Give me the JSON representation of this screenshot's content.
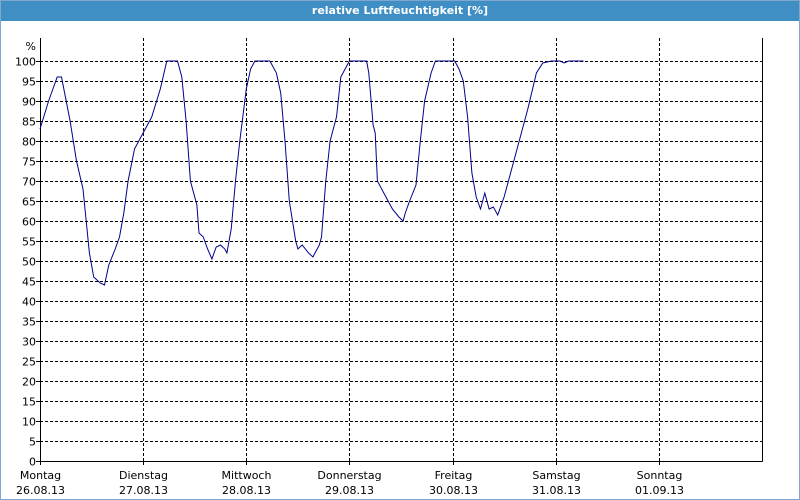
{
  "title": "relative Luftfeuchtigkeit [%]",
  "colors": {
    "title_bar": "#3f8fc4",
    "title_text": "#ffffff",
    "line": "#00008b",
    "grid": "#000000",
    "axis": "#000000"
  },
  "chart_data": {
    "type": "line",
    "title": "relative Luftfeuchtigkeit [%]",
    "ylabel": "%",
    "xlabel": "",
    "ylim": [
      0,
      100
    ],
    "yticks": [
      0,
      5,
      10,
      15,
      20,
      25,
      30,
      35,
      40,
      45,
      50,
      55,
      60,
      65,
      70,
      75,
      80,
      85,
      90,
      95,
      100
    ],
    "xlim": [
      "2013-08-26 00:00",
      "2013-09-02 00:00"
    ],
    "grid": true,
    "legend": "none",
    "x_ticks": [
      {
        "day": "Montag",
        "date": "26.08.13",
        "t": "2013-08-26 00:00"
      },
      {
        "day": "Dienstag",
        "date": "27.08.13",
        "t": "2013-08-27 00:00"
      },
      {
        "day": "Mittwoch",
        "date": "28.08.13",
        "t": "2013-08-28 00:00"
      },
      {
        "day": "Donnerstag",
        "date": "29.08.13",
        "t": "2013-08-29 00:00"
      },
      {
        "day": "Freitag",
        "date": "30.08.13",
        "t": "2013-08-30 00:00"
      },
      {
        "day": "Samstag",
        "date": "31.08.13",
        "t": "2013-08-31 00:00"
      },
      {
        "day": "Sonntag",
        "date": "01.09.13",
        "t": "2013-09-01 00:00"
      }
    ],
    "series": [
      {
        "color": "#00008b",
        "points": [
          [
            "2013-08-26 00:00",
            83
          ],
          [
            "2013-08-26 02:00",
            90
          ],
          [
            "2013-08-26 04:00",
            96
          ],
          [
            "2013-08-26 05:00",
            96
          ],
          [
            "2013-08-26 07:00",
            85
          ],
          [
            "2013-08-26 08:30",
            75
          ],
          [
            "2013-08-26 10:00",
            68
          ],
          [
            "2013-08-26 11:30",
            52
          ],
          [
            "2013-08-26 12:30",
            46
          ],
          [
            "2013-08-26 14:00",
            44.5
          ],
          [
            "2013-08-26 15:00",
            44
          ],
          [
            "2013-08-26 16:00",
            49
          ],
          [
            "2013-08-26 17:30",
            53
          ],
          [
            "2013-08-26 18:30",
            56
          ],
          [
            "2013-08-26 19:30",
            62
          ],
          [
            "2013-08-26 20:30",
            70
          ],
          [
            "2013-08-26 22:00",
            78
          ],
          [
            "2013-08-27 00:00",
            82
          ],
          [
            "2013-08-27 02:00",
            86
          ],
          [
            "2013-08-27 04:00",
            93
          ],
          [
            "2013-08-27 05:30",
            100
          ],
          [
            "2013-08-27 08:00",
            100
          ],
          [
            "2013-08-27 09:00",
            96
          ],
          [
            "2013-08-27 10:00",
            85
          ],
          [
            "2013-08-27 11:00",
            70
          ],
          [
            "2013-08-27 12:30",
            64
          ],
          [
            "2013-08-27 13:00",
            57
          ],
          [
            "2013-08-27 14:00",
            56
          ],
          [
            "2013-08-27 15:00",
            53
          ],
          [
            "2013-08-27 16:00",
            50.5
          ],
          [
            "2013-08-27 17:00",
            53.5
          ],
          [
            "2013-08-27 18:00",
            54
          ],
          [
            "2013-08-27 19:00",
            53
          ],
          [
            "2013-08-27 19:30",
            52
          ],
          [
            "2013-08-27 20:30",
            58
          ],
          [
            "2013-08-27 21:30",
            70
          ],
          [
            "2013-08-27 22:30",
            80
          ],
          [
            "2013-08-28 00:00",
            93
          ],
          [
            "2013-08-28 01:00",
            98
          ],
          [
            "2013-08-28 02:00",
            100
          ],
          [
            "2013-08-28 05:30",
            100
          ],
          [
            "2013-08-28 07:00",
            97
          ],
          [
            "2013-08-28 08:00",
            92
          ],
          [
            "2013-08-28 09:00",
            80
          ],
          [
            "2013-08-28 10:00",
            65
          ],
          [
            "2013-08-28 11:30",
            55
          ],
          [
            "2013-08-28 12:00",
            53
          ],
          [
            "2013-08-28 13:00",
            54
          ],
          [
            "2013-08-28 14:30",
            52
          ],
          [
            "2013-08-28 15:30",
            51
          ],
          [
            "2013-08-28 17:00",
            54
          ],
          [
            "2013-08-28 17:30",
            56
          ],
          [
            "2013-08-28 18:30",
            70
          ],
          [
            "2013-08-28 19:30",
            80
          ],
          [
            "2013-08-28 21:00",
            86
          ],
          [
            "2013-08-28 22:00",
            96
          ],
          [
            "2013-08-29 00:00",
            100
          ],
          [
            "2013-08-29 04:00",
            100
          ],
          [
            "2013-08-29 04:30",
            97
          ],
          [
            "2013-08-29 05:30",
            84
          ],
          [
            "2013-08-29 06:00",
            82
          ],
          [
            "2013-08-29 06:30",
            70
          ],
          [
            "2013-08-29 08:00",
            67
          ],
          [
            "2013-08-29 09:00",
            65
          ],
          [
            "2013-08-29 10:00",
            63
          ],
          [
            "2013-08-29 11:30",
            61
          ],
          [
            "2013-08-29 12:30",
            60
          ],
          [
            "2013-08-29 13:00",
            62
          ],
          [
            "2013-08-29 14:00",
            65
          ],
          [
            "2013-08-29 15:30",
            69
          ],
          [
            "2013-08-29 16:30",
            80
          ],
          [
            "2013-08-29 17:30",
            90
          ],
          [
            "2013-08-29 19:00",
            97
          ],
          [
            "2013-08-29 20:00",
            100
          ],
          [
            "2013-08-30 00:30",
            100
          ],
          [
            "2013-08-30 01:30",
            98
          ],
          [
            "2013-08-30 02:30",
            95
          ],
          [
            "2013-08-30 03:30",
            86
          ],
          [
            "2013-08-30 04:30",
            72
          ],
          [
            "2013-08-30 05:30",
            66
          ],
          [
            "2013-08-30 06:30",
            63
          ],
          [
            "2013-08-30 07:30",
            67
          ],
          [
            "2013-08-30 08:30",
            63
          ],
          [
            "2013-08-30 09:30",
            63.5
          ],
          [
            "2013-08-30 10:30",
            61.5
          ],
          [
            "2013-08-30 12:00",
            66
          ],
          [
            "2013-08-30 13:30",
            72
          ],
          [
            "2013-08-30 15:30",
            80
          ],
          [
            "2013-08-30 17:30",
            88
          ],
          [
            "2013-08-30 19:30",
            97
          ],
          [
            "2013-08-30 21:00",
            99.5
          ],
          [
            "2013-08-30 23:00",
            100
          ],
          [
            "2013-08-31 01:00",
            100
          ],
          [
            "2013-08-31 02:00",
            99.5
          ],
          [
            "2013-08-31 03:00",
            100
          ],
          [
            "2013-08-31 06:30",
            100
          ]
        ]
      }
    ]
  }
}
